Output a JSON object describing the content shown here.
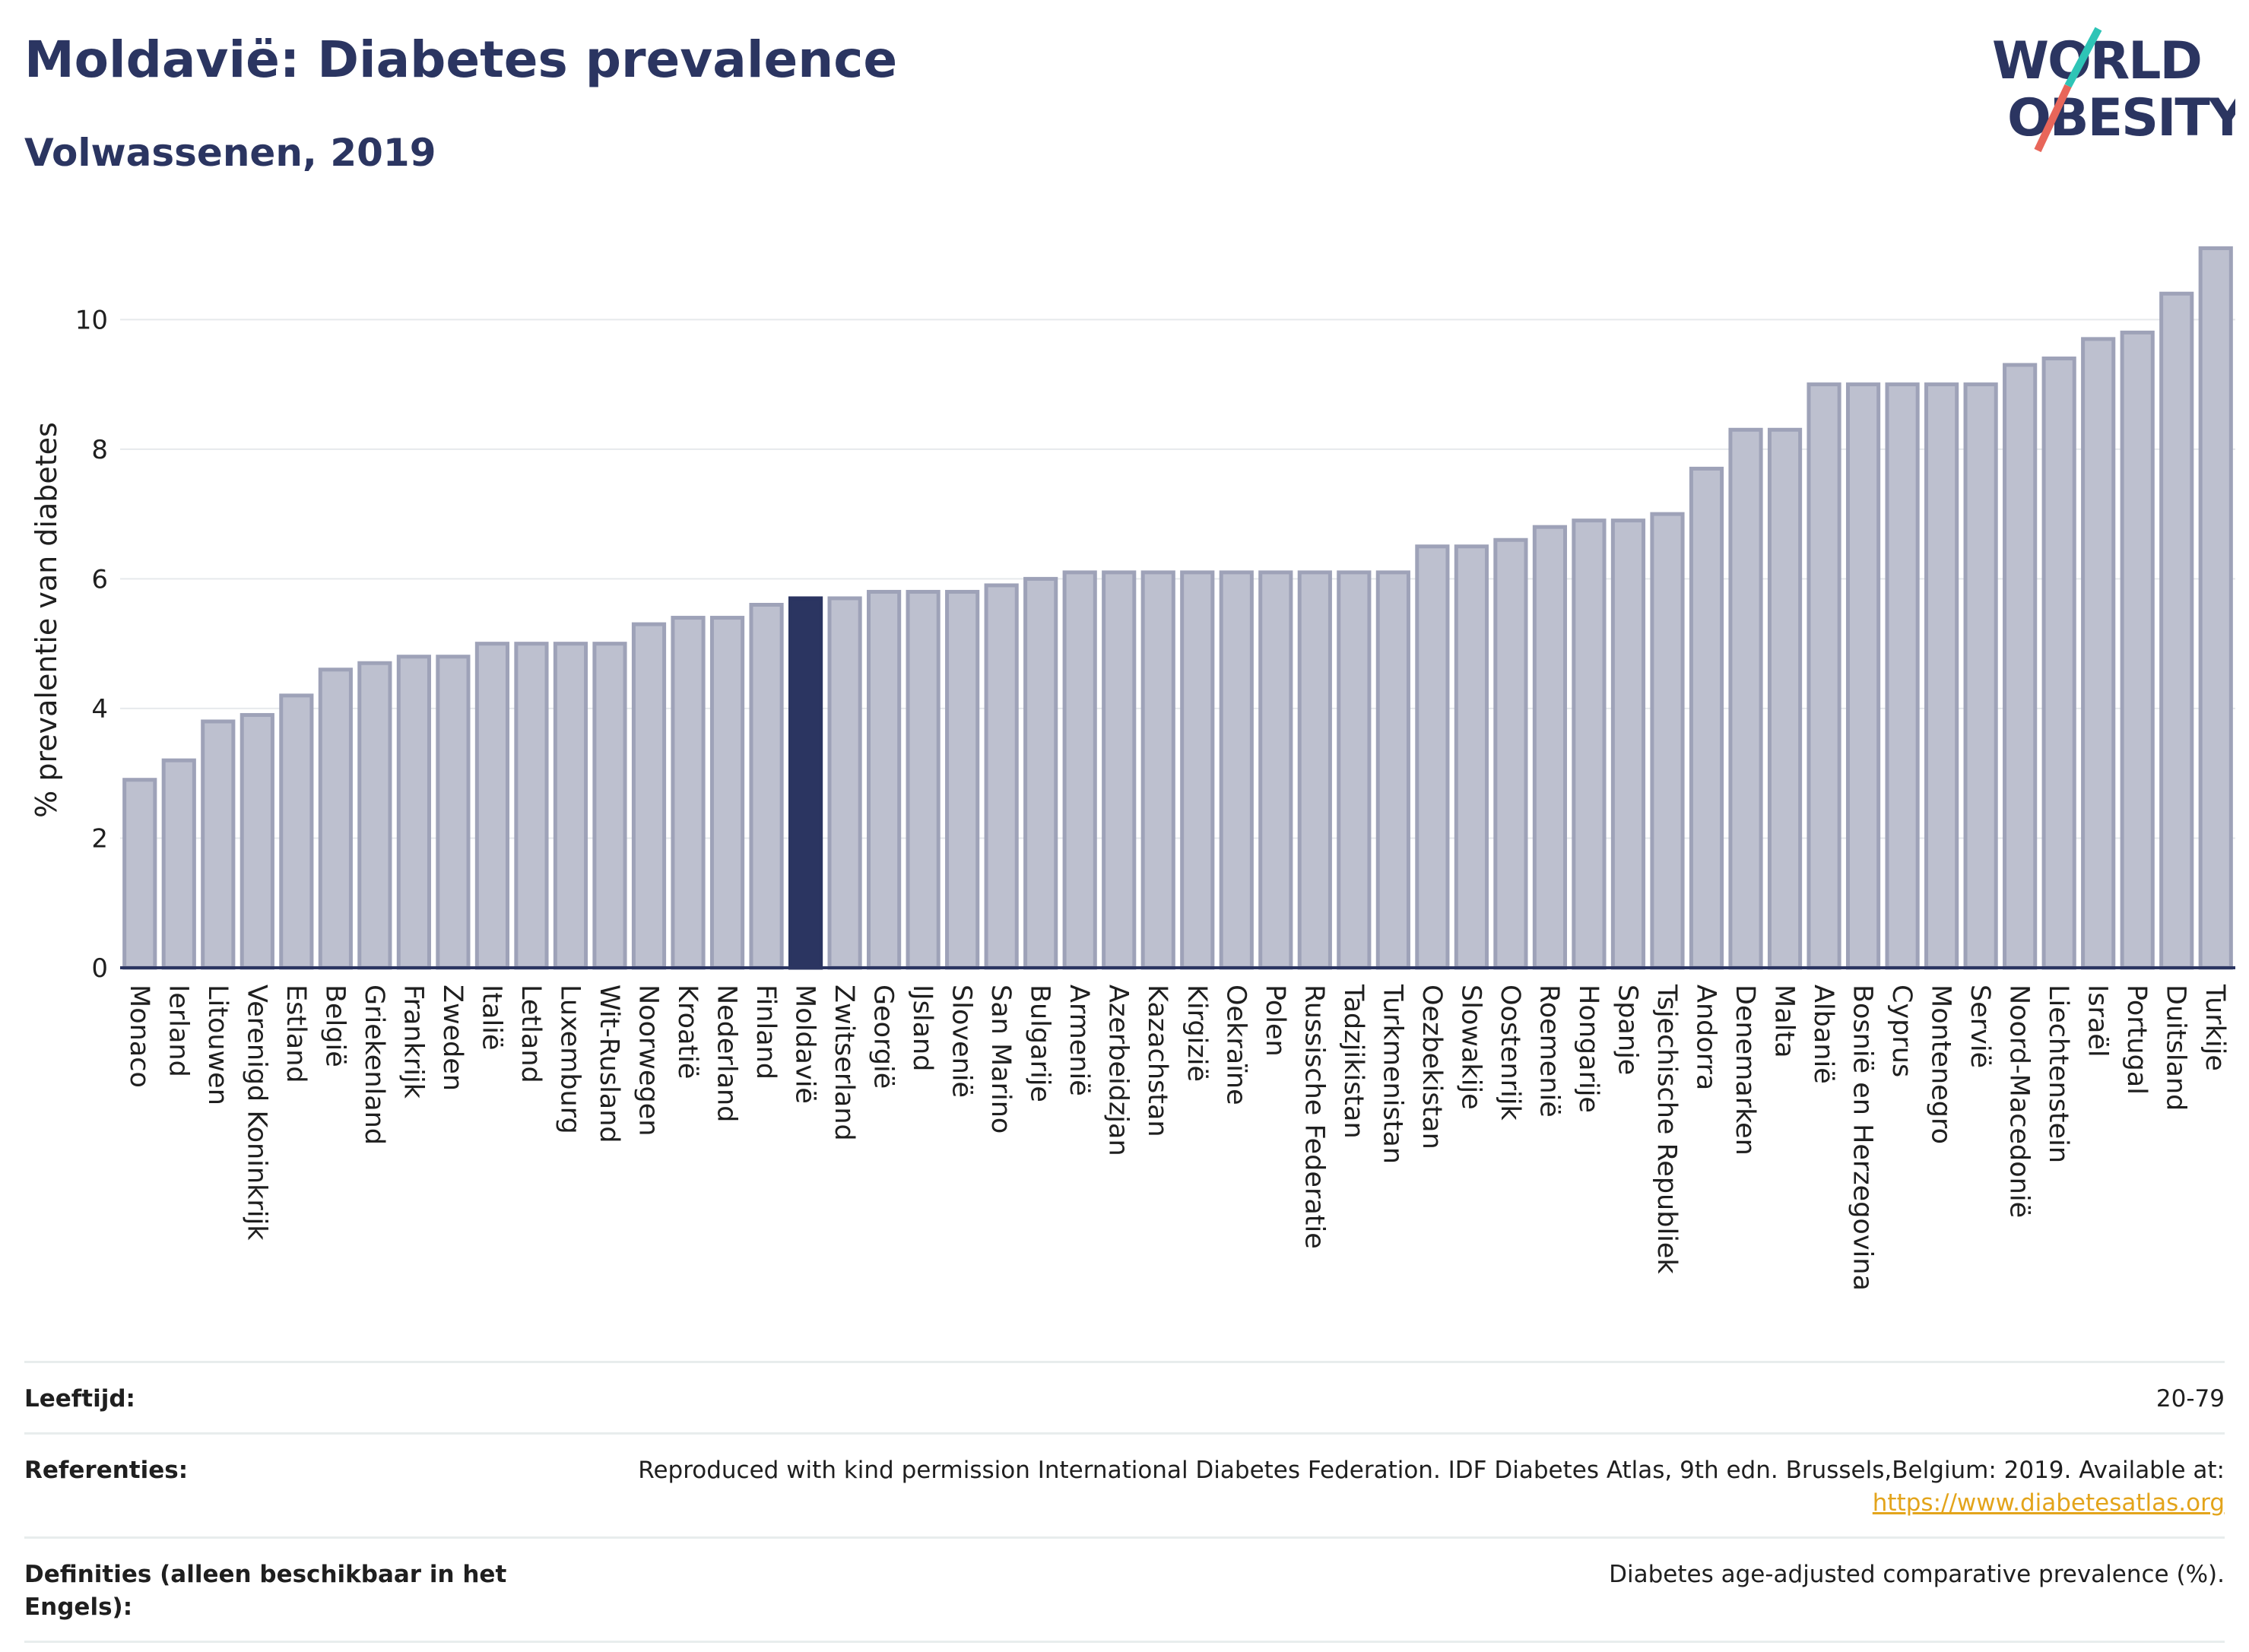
{
  "header": {
    "title": "Moldavië: Diabetes prevalence",
    "subtitle": "Volwassenen, 2019"
  },
  "logo": {
    "line1": "WORLD",
    "line2": "OBESITY"
  },
  "colors": {
    "bar": "#bdc0cf",
    "bar_stroke": "#9ea2b8",
    "highlight": "#2b3561",
    "grid": "#e6e9ec",
    "axis": "#2b3561"
  },
  "chart_data": {
    "type": "bar",
    "title": "",
    "xlabel": "",
    "ylabel": "% prevalentie van diabetes",
    "ylim": [
      0,
      11.2
    ],
    "yticks": [
      0,
      2,
      4,
      6,
      8,
      10
    ],
    "grid": true,
    "highlight": "Moldavië",
    "categories": [
      "Monaco",
      "Ierland",
      "Litouwen",
      "Verenigd Koninkrijk",
      "Estland",
      "België",
      "Griekenland",
      "Frankrijk",
      "Zweden",
      "Italië",
      "Letland",
      "Luxemburg",
      "Wit-Rusland",
      "Noorwegen",
      "Kroatië",
      "Nederland",
      "Finland",
      "Moldavië",
      "Zwitserland",
      "Georgië",
      "IJsland",
      "Slovenië",
      "San Marino",
      "Bulgarije",
      "Armenië",
      "Azerbeidzjan",
      "Kazachstan",
      "Kirgizië",
      "Oekraïne",
      "Polen",
      "Russische Federatie",
      "Tadzjikistan",
      "Turkmenistan",
      "Oezbekistan",
      "Slowakije",
      "Oostenrijk",
      "Roemenië",
      "Hongarije",
      "Spanje",
      "Tsjechische Republiek",
      "Andorra",
      "Denemarken",
      "Malta",
      "Albanië",
      "Bosnië en Herzegovina",
      "Cyprus",
      "Montenegro",
      "Servië",
      "Noord-Macedonië",
      "Liechtenstein",
      "Israël",
      "Portugal",
      "Duitsland",
      "Turkije"
    ],
    "values": [
      2.9,
      3.2,
      3.8,
      3.9,
      4.2,
      4.6,
      4.7,
      4.8,
      4.8,
      5.0,
      5.0,
      5.0,
      5.0,
      5.3,
      5.4,
      5.4,
      5.6,
      5.7,
      5.7,
      5.8,
      5.8,
      5.8,
      5.9,
      6.0,
      6.1,
      6.1,
      6.1,
      6.1,
      6.1,
      6.1,
      6.1,
      6.1,
      6.1,
      6.5,
      6.5,
      6.6,
      6.8,
      6.9,
      6.9,
      7.0,
      7.7,
      8.3,
      8.3,
      9.0,
      9.0,
      9.0,
      9.0,
      9.0,
      9.3,
      9.4,
      9.7,
      9.8,
      10.4,
      11.1
    ]
  },
  "info": {
    "rows": [
      {
        "label": "Leeftijd:",
        "value": "20-79",
        "link": ""
      },
      {
        "label": "Referenties:",
        "value": "Reproduced with kind permission International Diabetes Federation. IDF Diabetes Atlas, 9th edn. Brussels,Belgium: 2019. Available at:",
        "link": "https://www.diabetesatlas.org"
      },
      {
        "label": "Definities (alleen beschikbaar in het Engels):",
        "value": "Diabetes age-adjusted comparative prevalence (%).",
        "link": ""
      }
    ]
  }
}
